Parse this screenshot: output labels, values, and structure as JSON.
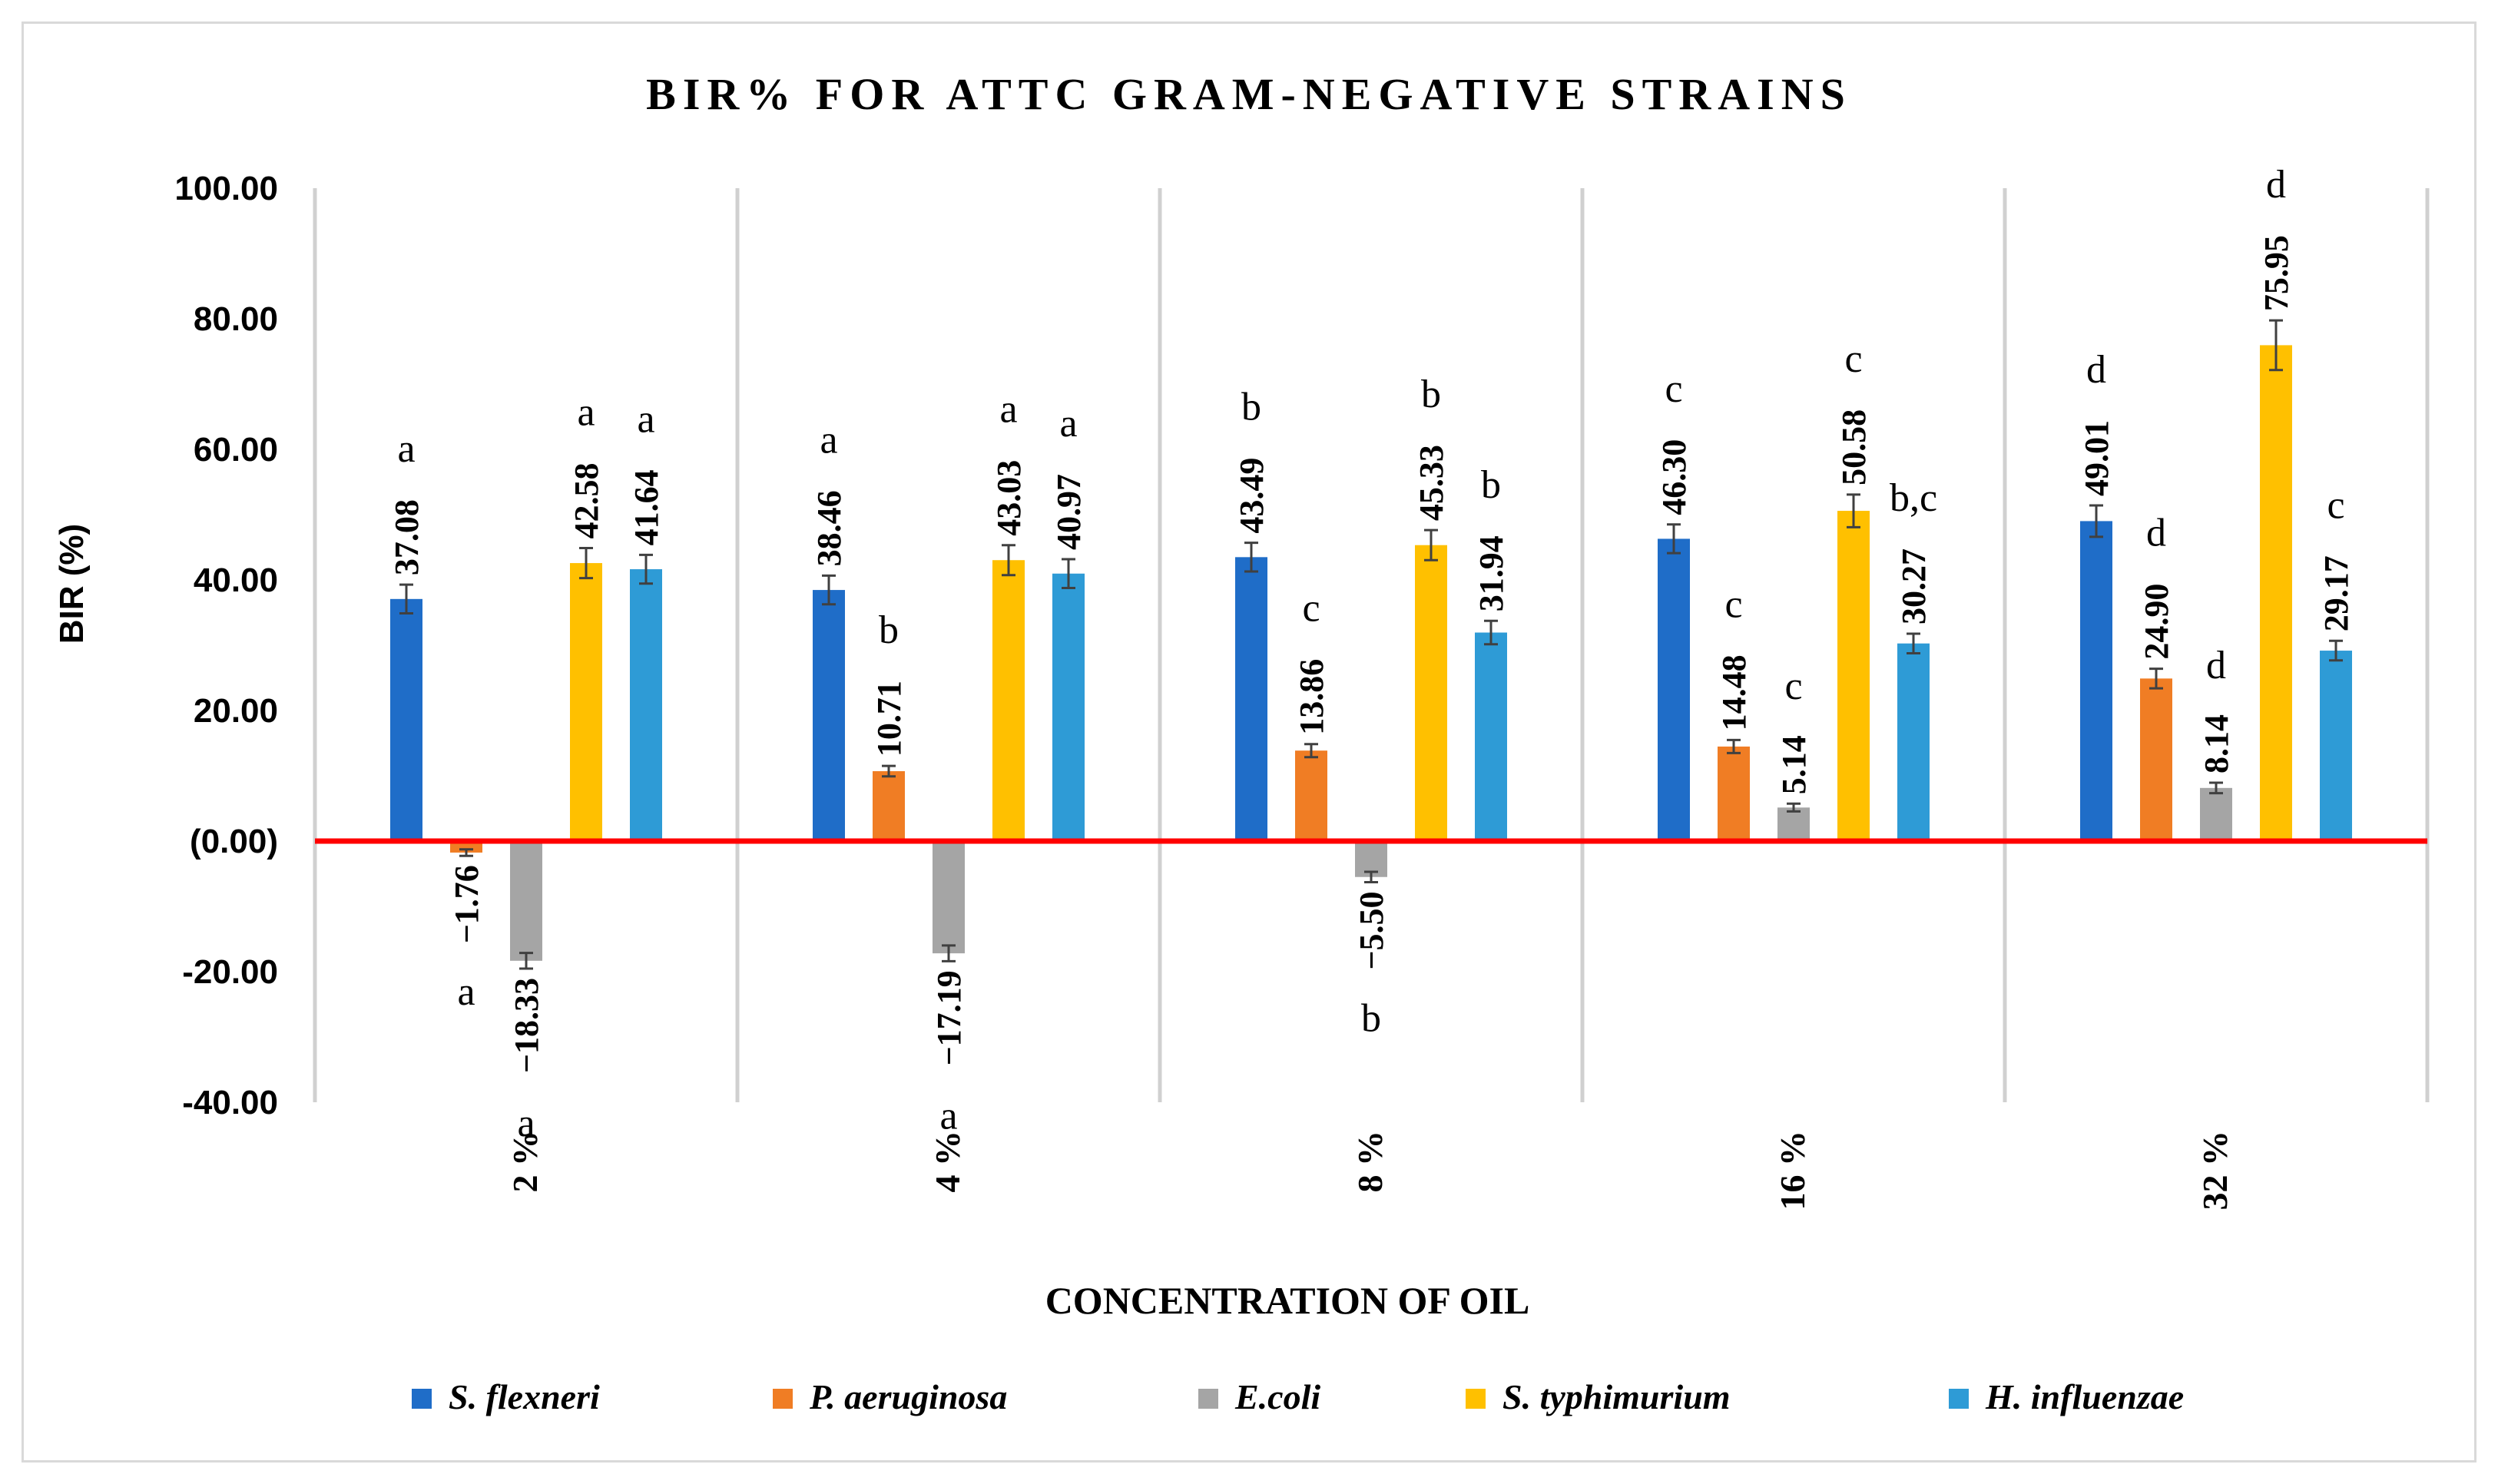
{
  "chart_data": {
    "type": "bar",
    "title": "BIR% FOR ATTC GRAM-NEGATIVE STRAINS",
    "xlabel": "CONCENTRATION OF OIL",
    "ylabel": "BIR (%)",
    "ylim": [
      -40,
      100
    ],
    "yticks": [
      100,
      80,
      60,
      40,
      20,
      0,
      -20,
      -40
    ],
    "ytick_labels": [
      "100.00",
      "80.00",
      "60.00",
      "40.00",
      "20.00",
      "(0.00)",
      "-20.00",
      "-40.00"
    ],
    "categories": [
      "2 %",
      "4 %",
      "8 %",
      "16 %",
      "32 %"
    ],
    "series": [
      {
        "name": "S. flexneri",
        "color": "#1f6dc8",
        "values": [
          37.08,
          38.46,
          43.49,
          46.3,
          49.01
        ],
        "labels": [
          "37.08",
          "38.46",
          "43.49",
          "46.30",
          "49.01"
        ],
        "errors": [
          2.2,
          2.2,
          2.2,
          2.2,
          2.4
        ],
        "letters": [
          "a",
          "a",
          "b",
          "c",
          "d"
        ]
      },
      {
        "name": "P. aeruginosa",
        "color": "#f07d24",
        "values": [
          -1.76,
          10.71,
          13.86,
          14.48,
          24.9
        ],
        "labels": [
          "−1.76",
          "10.71",
          "13.86",
          "14.48",
          "24.90"
        ],
        "errors": [
          0.5,
          0.8,
          1.0,
          1.0,
          1.5
        ],
        "letters": [
          "a",
          "b",
          "c",
          "c",
          "d"
        ]
      },
      {
        "name": "E.coli",
        "color": "#a5a5a5",
        "values": [
          -18.33,
          -17.19,
          -5.5,
          5.14,
          8.14
        ],
        "labels": [
          "−18.33",
          "−17.19",
          "−5.50",
          "5.14",
          "8.14"
        ],
        "errors": [
          1.2,
          1.2,
          0.8,
          0.6,
          0.8
        ],
        "letters": [
          "a",
          "a",
          "b",
          "c",
          "d"
        ]
      },
      {
        "name": "S. typhimurium",
        "color": "#ffc000",
        "values": [
          42.58,
          43.03,
          45.33,
          50.58,
          75.95
        ],
        "labels": [
          "42.58",
          "43.03",
          "45.33",
          "50.58",
          "75.95"
        ],
        "errors": [
          2.3,
          2.3,
          2.3,
          2.5,
          3.8
        ],
        "letters": [
          "a",
          "a",
          "b",
          "c",
          "d"
        ]
      },
      {
        "name": "H. influenzae",
        "color": "#2e9bd6",
        "values": [
          41.64,
          40.97,
          31.94,
          30.27,
          29.17
        ],
        "labels": [
          "41.64",
          "40.97",
          "31.94",
          "30.27",
          "29.17"
        ],
        "errors": [
          2.2,
          2.2,
          1.8,
          1.5,
          1.5
        ],
        "letters": [
          "a",
          "a",
          "b",
          "b,c",
          "c"
        ]
      }
    ],
    "legend_position": "bottom",
    "zero_line_color": "#ff0000"
  }
}
